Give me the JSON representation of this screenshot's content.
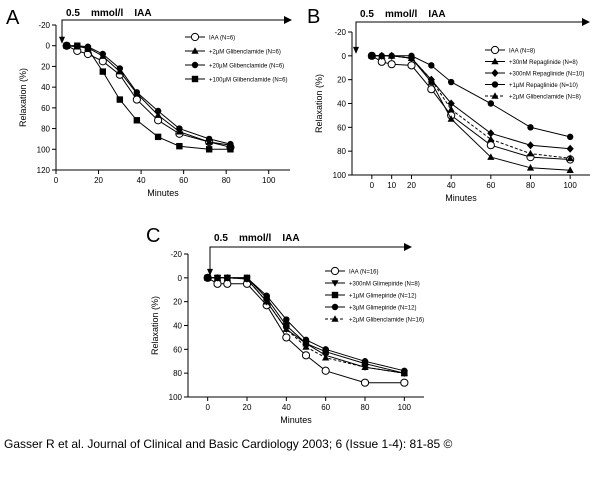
{
  "citation": "Gasser R et al. Journal of Clinical and Basic Cardiology 2003; 6 (Issue 1-4): 81-85 ©",
  "chart_data": [
    {
      "panel": "A",
      "type": "line",
      "treatment_label": "0.5    mmol/l    IAA",
      "xlabel": "Minutes",
      "ylabel": "Relaxation (%)",
      "xlim": [
        0,
        110
      ],
      "ylim": [
        120,
        -20
      ],
      "y_inverted": true,
      "xticks": [
        0,
        20,
        40,
        60,
        80,
        100
      ],
      "xtick_labels": [
        "0",
        "20",
        "40",
        "60",
        "80",
        "100"
      ],
      "yticks": [
        -20,
        0,
        20,
        40,
        60,
        80,
        100,
        120
      ],
      "ytick_labels": [
        "-20",
        "0",
        "20",
        "40",
        "60",
        "80",
        "100",
        "120"
      ],
      "legend_position": "right",
      "series": [
        {
          "name": "IAA (N=6)",
          "marker": "circle-open",
          "dashed": false,
          "x": [
            5,
            10,
            15,
            22,
            30,
            38,
            48,
            58,
            72,
            82
          ],
          "y": [
            0,
            5,
            8,
            15,
            28,
            52,
            72,
            85,
            93,
            98
          ]
        },
        {
          "name": "+2µM Glibenclamide (N=6)",
          "marker": "triangle-filled",
          "dashed": false,
          "x": [
            5,
            10,
            15,
            22,
            30,
            38,
            48,
            58,
            72,
            82
          ],
          "y": [
            0,
            1,
            2,
            10,
            25,
            46,
            67,
            83,
            93,
            96
          ]
        },
        {
          "name": "+20µM Glibenclamide (N=6)",
          "marker": "circle-filled",
          "dashed": false,
          "x": [
            5,
            10,
            15,
            22,
            30,
            38,
            48,
            58,
            72,
            82
          ],
          "y": [
            0,
            0,
            1,
            8,
            22,
            45,
            63,
            80,
            90,
            95
          ]
        },
        {
          "name": "+100µM Glibenclamide (N=6)",
          "marker": "square-filled",
          "dashed": false,
          "x": [
            5,
            10,
            15,
            22,
            30,
            38,
            48,
            58,
            72,
            82
          ],
          "y": [
            0,
            0,
            3,
            25,
            52,
            72,
            88,
            97,
            100,
            100
          ]
        }
      ]
    },
    {
      "panel": "B",
      "type": "line",
      "treatment_label": "0.5    mmol/l    IAA",
      "xlabel": "Minutes",
      "ylabel": "Relaxation (%)",
      "xlim": [
        -10,
        110
      ],
      "ylim": [
        100,
        -20
      ],
      "y_inverted": true,
      "xticks": [
        0,
        10,
        20,
        40,
        60,
        80,
        100
      ],
      "xtick_labels": [
        "0",
        "10",
        "20",
        "40",
        "60",
        "80",
        "100"
      ],
      "yticks": [
        -20,
        0,
        20,
        40,
        60,
        80,
        100
      ],
      "ytick_labels": [
        "-20",
        "0",
        "20",
        "40",
        "60",
        "80",
        "100"
      ],
      "legend_position": "right",
      "series": [
        {
          "name": "IAA (N=8)",
          "marker": "circle-open",
          "dashed": false,
          "x": [
            0,
            5,
            10,
            20,
            30,
            40,
            60,
            80,
            100
          ],
          "y": [
            0,
            5,
            7,
            8,
            28,
            50,
            75,
            85,
            87
          ]
        },
        {
          "name": "+30nM Repaglinide (N=8)",
          "marker": "triangle-filled",
          "dashed": false,
          "x": [
            0,
            5,
            10,
            20,
            30,
            40,
            60,
            80,
            100
          ],
          "y": [
            0,
            0,
            0,
            2,
            22,
            53,
            85,
            94,
            96
          ]
        },
        {
          "name": "+300nM Repaglinide (N=10)",
          "marker": "diamond-filled",
          "dashed": false,
          "x": [
            0,
            5,
            10,
            20,
            30,
            40,
            60,
            80,
            100
          ],
          "y": [
            0,
            0,
            0,
            2,
            20,
            40,
            65,
            75,
            78
          ]
        },
        {
          "name": "+1µM Repaglinide (N=10)",
          "marker": "circle-filled",
          "dashed": false,
          "x": [
            0,
            5,
            10,
            20,
            30,
            40,
            60,
            80,
            100
          ],
          "y": [
            0,
            0,
            0,
            0,
            8,
            22,
            40,
            60,
            68
          ]
        },
        {
          "name": "+2µM Glibenclamide (N=8)",
          "marker": "triangle-filled",
          "dashed": true,
          "x": [
            0,
            5,
            10,
            20,
            30,
            40,
            60,
            80,
            100
          ],
          "y": [
            0,
            0,
            0,
            2,
            20,
            45,
            70,
            82,
            86
          ]
        }
      ]
    },
    {
      "panel": "C",
      "type": "line",
      "treatment_label": "0.5    mmol/l    IAA",
      "xlabel": "Minutes",
      "ylabel": "Relaxation (%)",
      "xlim": [
        -10,
        110
      ],
      "ylim": [
        100,
        -20
      ],
      "y_inverted": true,
      "xticks": [
        0,
        20,
        40,
        60,
        80,
        100
      ],
      "xtick_labels": [
        "0",
        "20",
        "40",
        "60",
        "80",
        "100"
      ],
      "yticks": [
        -20,
        0,
        20,
        40,
        60,
        80,
        100
      ],
      "ytick_labels": [
        "-20",
        "0",
        "20",
        "40",
        "60",
        "80",
        "100"
      ],
      "legend_position": "right",
      "series": [
        {
          "name": "IAA (N=16)",
          "marker": "circle-open",
          "dashed": false,
          "x": [
            0,
            5,
            10,
            20,
            30,
            40,
            50,
            60,
            80,
            100
          ],
          "y": [
            0,
            5,
            5,
            5,
            23,
            50,
            65,
            78,
            88,
            88
          ]
        },
        {
          "name": "+300nM Glimepiride (N=8)",
          "marker": "triangle-down-filled",
          "dashed": false,
          "x": [
            0,
            5,
            10,
            20,
            30,
            40,
            50,
            60,
            80,
            100
          ],
          "y": [
            0,
            0,
            0,
            1,
            20,
            43,
            55,
            65,
            75,
            80
          ]
        },
        {
          "name": "+1µM Glimepiride (N=12)",
          "marker": "square-filled",
          "dashed": false,
          "x": [
            0,
            5,
            10,
            20,
            30,
            40,
            50,
            60,
            80,
            100
          ],
          "y": [
            0,
            0,
            0,
            0,
            17,
            40,
            55,
            62,
            72,
            80
          ]
        },
        {
          "name": "+3µM Glimepiride (N=12)",
          "marker": "circle-filled",
          "dashed": false,
          "x": [
            0,
            5,
            10,
            20,
            30,
            40,
            50,
            60,
            80,
            100
          ],
          "y": [
            0,
            0,
            0,
            0,
            15,
            35,
            52,
            60,
            70,
            78
          ]
        },
        {
          "name": "+2µM Glibenclamide (N=16)",
          "marker": "triangle-filled",
          "dashed": true,
          "x": [
            0,
            5,
            10,
            20,
            30,
            40,
            50,
            60,
            80,
            100
          ],
          "y": [
            0,
            0,
            0,
            1,
            20,
            43,
            58,
            67,
            75,
            80
          ]
        }
      ]
    }
  ]
}
